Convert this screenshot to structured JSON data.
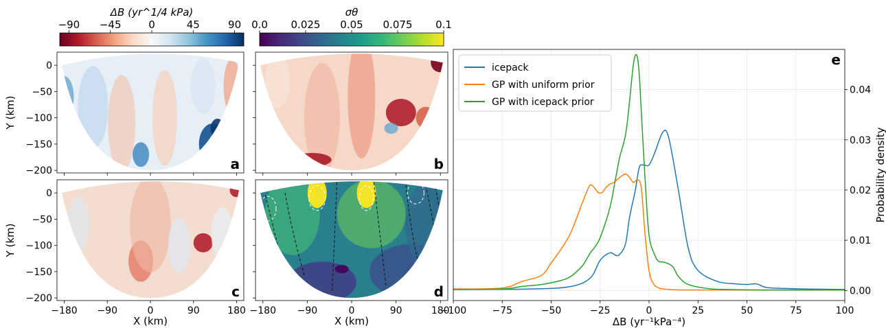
{
  "colorbars": {
    "delta": {
      "label": "ΔB (yr^1/4 kPa)",
      "ticks": [
        "−90",
        "−45",
        "0",
        "45",
        "90"
      ],
      "tick_values": [
        -90,
        -45,
        0,
        45,
        90
      ],
      "range": [
        -100,
        100
      ],
      "colors": [
        "#67001f",
        "#b2182b",
        "#d6604d",
        "#f4a582",
        "#fddbc7",
        "#f7f7f7",
        "#d1e5f0",
        "#92c5de",
        "#4393c3",
        "#2166ac",
        "#053061"
      ]
    },
    "sigma": {
      "label": "σθ",
      "ticks": [
        "0.0",
        "0.025",
        "0.05",
        "0.075",
        "0.1"
      ],
      "tick_values": [
        0,
        0.025,
        0.05,
        0.075,
        0.1
      ],
      "range": [
        0,
        0.1
      ],
      "colors": [
        "#440154",
        "#482878",
        "#3e4989",
        "#31688e",
        "#26828e",
        "#1f9e89",
        "#35b779",
        "#6ece58",
        "#b5de2b",
        "#fde725"
      ]
    }
  },
  "maps": {
    "xlabel": "X (km)",
    "ylabel": "Y (km)",
    "xticks": [
      "−180",
      "−90",
      "0",
      "90",
      "180"
    ],
    "yticks": [
      "0",
      "−50",
      "−100",
      "−150",
      "−200"
    ],
    "panels": [
      {
        "letter": "a",
        "kind": "delta"
      },
      {
        "letter": "b",
        "kind": "delta"
      },
      {
        "letter": "c",
        "kind": "delta"
      },
      {
        "letter": "d",
        "kind": "sigma"
      }
    ]
  },
  "chart_data": {
    "type": "line",
    "panel_letter": "e",
    "xlabel": "ΔB (yr⁻¹kPa⁻⁴)",
    "ylabel": "Probability density",
    "xlim": [
      -100,
      100
    ],
    "ylim": [
      -0.002,
      0.048
    ],
    "xticks": [
      -100,
      -75,
      -50,
      -25,
      0,
      25,
      50,
      75,
      100
    ],
    "yticks": [
      0.0,
      0.01,
      0.02,
      0.03,
      0.04
    ],
    "ytick_labels": [
      "0.00",
      "0.01",
      "0.02",
      "0.03",
      "0.04"
    ],
    "grid": true,
    "legend_position": "top-left",
    "series": [
      {
        "name": "icepack",
        "color": "#1f77b4",
        "x": [
          -100,
          -60,
          -40,
          -30,
          -25,
          -20,
          -17,
          -15,
          -12,
          -10,
          -7,
          -5,
          -3,
          0,
          3,
          7,
          10,
          15,
          20,
          25,
          35,
          45,
          50,
          55,
          60,
          70,
          80,
          100
        ],
        "y": [
          0.0002,
          0.0003,
          0.0008,
          0.0025,
          0.006,
          0.0075,
          0.007,
          0.0072,
          0.0093,
          0.0145,
          0.02,
          0.0245,
          0.025,
          0.025,
          0.0275,
          0.0315,
          0.0305,
          0.02,
          0.0085,
          0.004,
          0.0018,
          0.0013,
          0.0012,
          0.0013,
          0.0006,
          0.0004,
          0.0003,
          0.0002
        ]
      },
      {
        "name": "GP with uniform prior",
        "color": "#ff7f0e",
        "x": [
          -100,
          -75,
          -65,
          -55,
          -50,
          -45,
          -40,
          -35,
          -32,
          -30,
          -28,
          -26,
          -24,
          -22,
          -20,
          -18,
          -15,
          -12,
          -10,
          -8,
          -6,
          -4,
          -2,
          0,
          2,
          5,
          10,
          20,
          50,
          100
        ],
        "y": [
          0.0003,
          0.0005,
          0.0018,
          0.003,
          0.0055,
          0.0082,
          0.0115,
          0.0165,
          0.0195,
          0.021,
          0.0205,
          0.0195,
          0.0195,
          0.0205,
          0.0212,
          0.0215,
          0.0225,
          0.0232,
          0.0225,
          0.0215,
          0.022,
          0.0205,
          0.011,
          0.004,
          0.0015,
          0.0005,
          0.0002,
          0.0001,
          0.0001,
          0.0001
        ]
      },
      {
        "name": "GP with icepack prior",
        "color": "#2ca02c",
        "x": [
          -100,
          -75,
          -65,
          -55,
          -45,
          -40,
          -35,
          -33,
          -30,
          -28,
          -25,
          -20,
          -17,
          -15,
          -12,
          -10,
          -9,
          -8,
          -7,
          -6,
          -5,
          -4,
          -2,
          0,
          3,
          5,
          8,
          12,
          15,
          20,
          30,
          40,
          60,
          100
        ],
        "y": [
          0.0002,
          0.0003,
          0.0008,
          0.0012,
          0.002,
          0.0028,
          0.0045,
          0.0055,
          0.0075,
          0.0085,
          0.0105,
          0.0165,
          0.0225,
          0.0265,
          0.031,
          0.0375,
          0.0415,
          0.045,
          0.0468,
          0.0465,
          0.043,
          0.036,
          0.022,
          0.011,
          0.007,
          0.0058,
          0.0056,
          0.0048,
          0.0028,
          0.0012,
          0.0004,
          0.0002,
          0.0001,
          0.0001
        ]
      }
    ]
  }
}
